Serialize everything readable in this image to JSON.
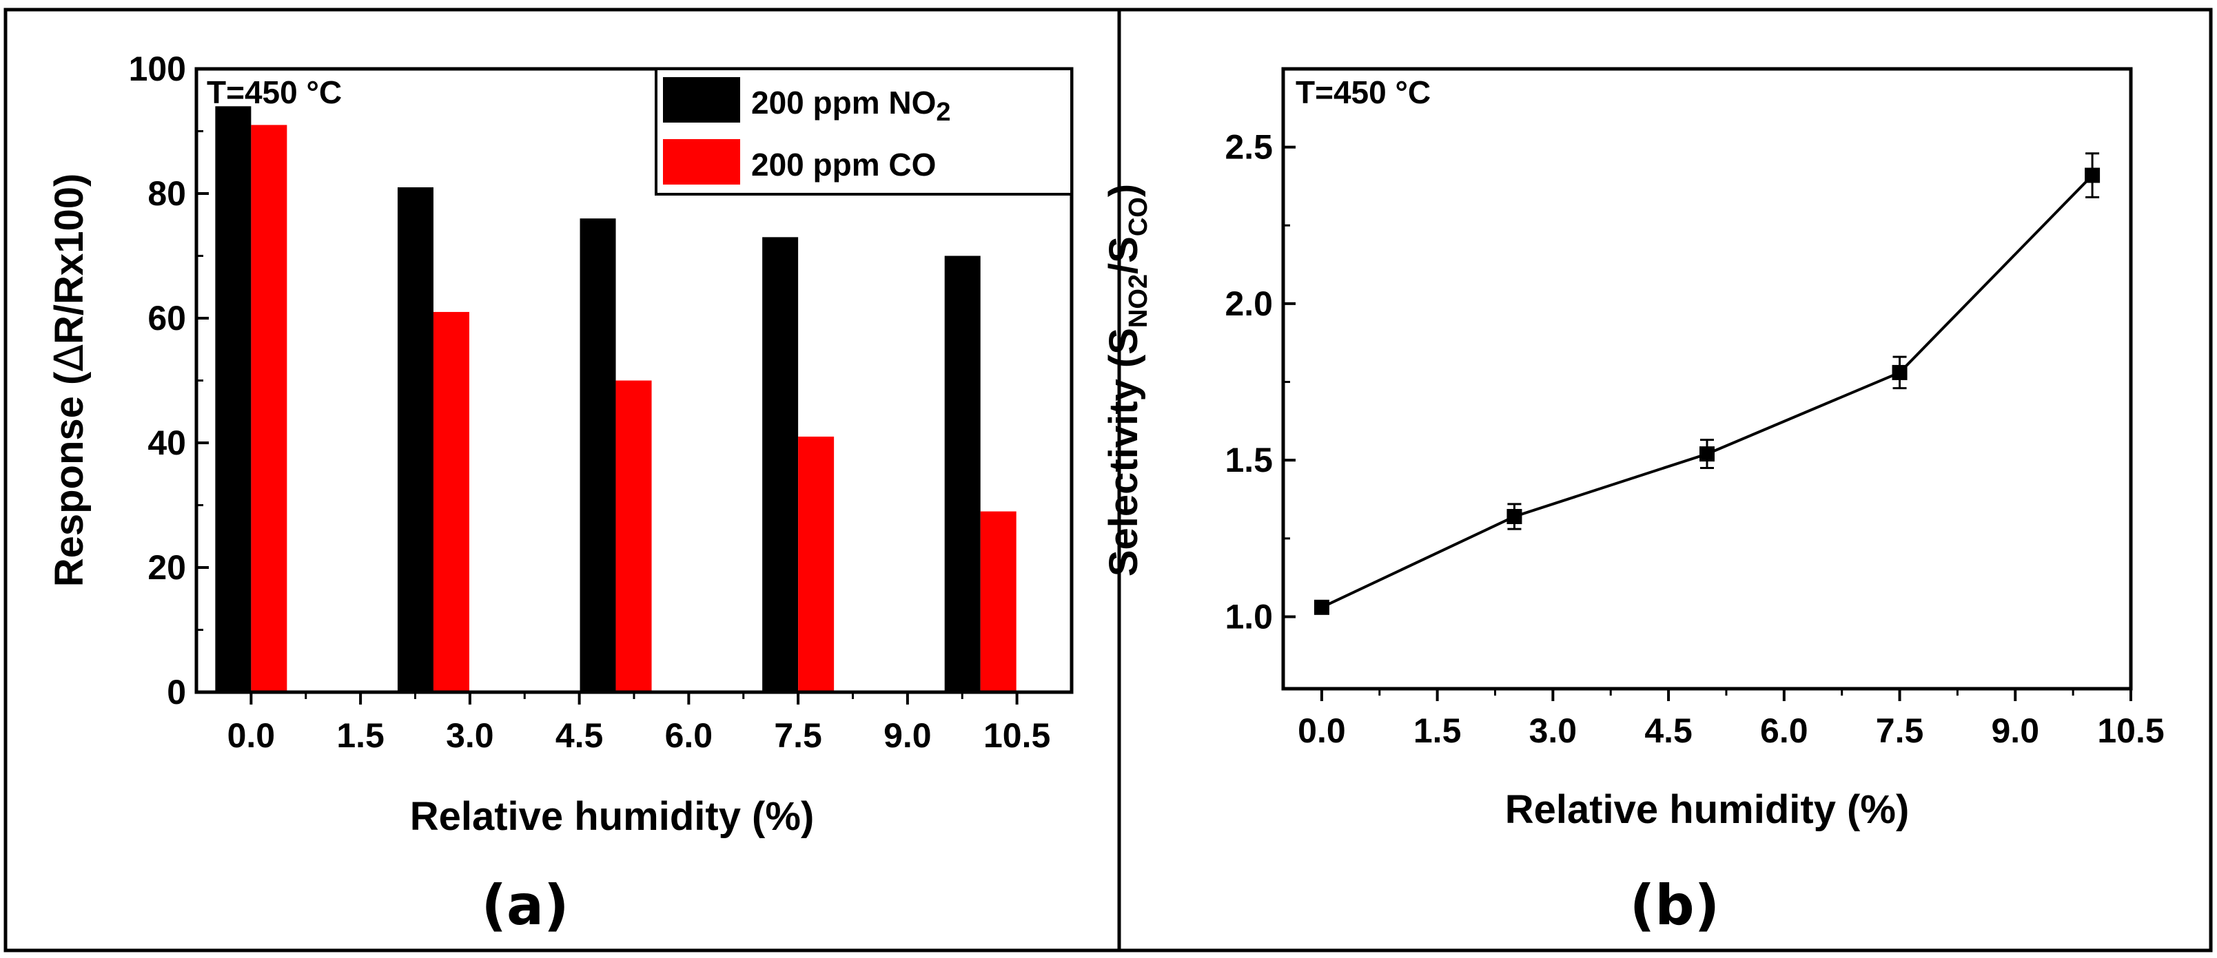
{
  "chart_data": [
    {
      "panel": "(a)",
      "type": "bar",
      "annotation": "T=450 °C",
      "xlabel": "Relative humidity (%)",
      "ylabel": "Response (ΔR/Rx100)",
      "ylabel_parts": {
        "main": "Response (",
        "delta": "Δ",
        "rest": "R/Rx100)"
      },
      "xlim": [
        -0.75,
        11.25
      ],
      "ylim": [
        0,
        100
      ],
      "xticks": [
        "0.0",
        "1.5",
        "3.0",
        "4.5",
        "6.0",
        "7.5",
        "9.0",
        "10.5"
      ],
      "xtick_values": [
        0,
        1.5,
        3,
        4.5,
        6,
        7.5,
        9,
        10.5
      ],
      "yticks": [
        "0",
        "20",
        "40",
        "60",
        "80",
        "100"
      ],
      "ytick_values": [
        0,
        20,
        40,
        60,
        80,
        100
      ],
      "x": [
        0,
        2.5,
        5,
        7.5,
        10
      ],
      "series": [
        {
          "name": "200 ppm NO2",
          "label_main": "200 ppm NO",
          "label_sub": "2",
          "color": "#000000",
          "values": [
            94,
            81,
            76,
            73,
            70
          ]
        },
        {
          "name": "200 ppm CO",
          "label_main": "200 ppm CO",
          "label_sub": "",
          "color": "#ff0000",
          "values": [
            91,
            61,
            50,
            41,
            29
          ]
        }
      ],
      "legend": "top-right"
    },
    {
      "panel": "(b)",
      "type": "line",
      "annotation": "T=450 °C",
      "xlabel": "Relative humidity (%)",
      "ylabel": "Selectivity (SNO2/SCO)",
      "ylabel_parts": {
        "main": "Selectivity (S",
        "sub1": "NO2",
        "mid": "/S",
        "sub2": "CO",
        "end": ")"
      },
      "xlim": [
        -0.5,
        10.5
      ],
      "ylim": [
        0.77,
        2.75
      ],
      "xticks": [
        "0.0",
        "1.5",
        "3.0",
        "4.5",
        "6.0",
        "7.5",
        "9.0",
        "10.5"
      ],
      "xtick_values": [
        0,
        1.5,
        3,
        4.5,
        6,
        7.5,
        9,
        10.5
      ],
      "yticks": [
        "1.0",
        "1.5",
        "2.0",
        "2.5"
      ],
      "ytick_values": [
        1.0,
        1.5,
        2.0,
        2.5
      ],
      "series": [
        {
          "name": "Selectivity",
          "color": "#000000",
          "x": [
            0,
            2.5,
            5,
            7.5,
            10
          ],
          "values": [
            1.03,
            1.32,
            1.52,
            1.78,
            2.41
          ],
          "errors": [
            0.02,
            0.04,
            0.045,
            0.05,
            0.07
          ]
        }
      ]
    }
  ]
}
